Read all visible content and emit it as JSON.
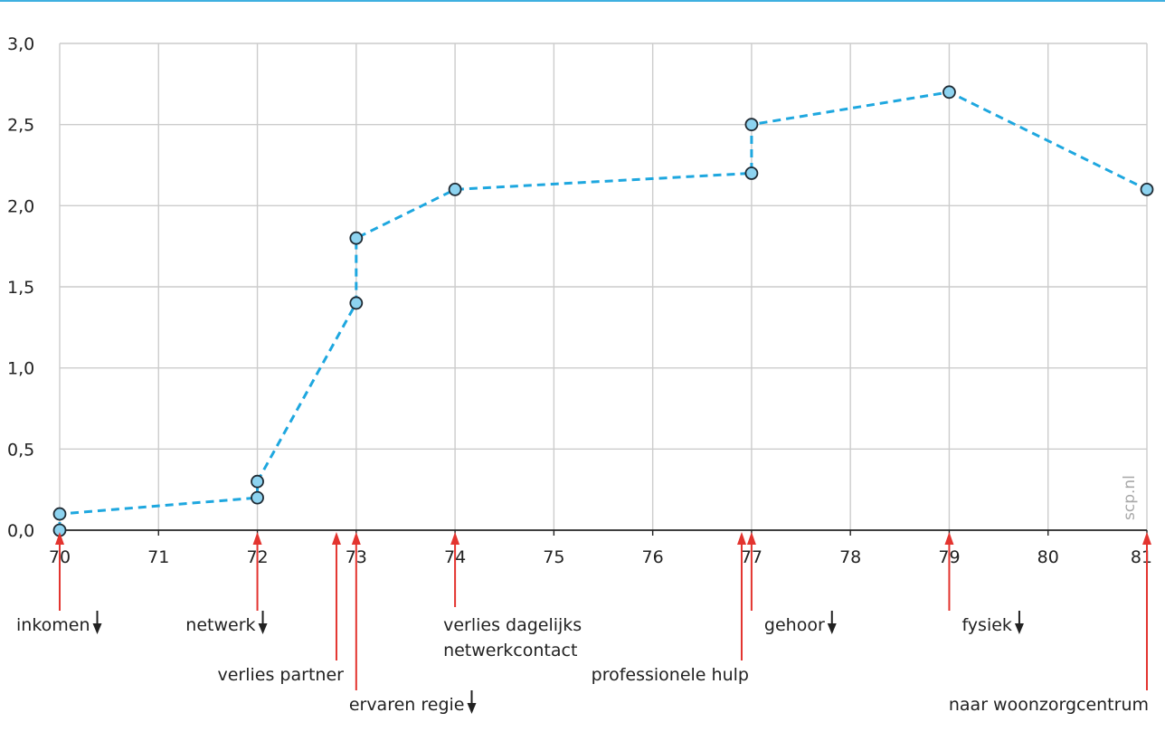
{
  "chart_data": {
    "type": "line",
    "title": "",
    "xlabel": "",
    "ylabel": "",
    "xlim": [
      70,
      81
    ],
    "ylim": [
      0,
      3
    ],
    "grid": true,
    "x_ticks": [
      70,
      71,
      72,
      73,
      74,
      75,
      76,
      77,
      78,
      79,
      80,
      81
    ],
    "x_tick_labels": [
      "70",
      "71",
      "72",
      "73",
      "74",
      "75",
      "76",
      "77",
      "78",
      "79",
      "80",
      "81"
    ],
    "y_ticks": [
      0,
      0.5,
      1,
      1.5,
      2,
      2.5,
      3
    ],
    "y_tick_labels": [
      "0,0",
      "0,5",
      "1,0",
      "1,5",
      "2,0",
      "2,5",
      "3,0"
    ],
    "series": [
      {
        "x": [
          70,
          70,
          72,
          72,
          73,
          73,
          74,
          77,
          77,
          79,
          81
        ],
        "y": [
          0.0,
          0.1,
          0.2,
          0.3,
          1.4,
          1.8,
          2.1,
          2.2,
          2.5,
          2.7,
          2.1
        ]
      }
    ],
    "annotations": [
      {
        "x": 70,
        "lines": [
          "inkomen"
        ],
        "row": 1,
        "down_arrow": true
      },
      {
        "x": 72,
        "lines": [
          "netwerk"
        ],
        "row": 1,
        "down_arrow": true
      },
      {
        "x": 72.8,
        "lines": [
          "verlies partner"
        ],
        "row": 2,
        "down_arrow": false
      },
      {
        "x": 73,
        "lines": [
          "ervaren regie"
        ],
        "row": 3,
        "down_arrow": true
      },
      {
        "x": 74,
        "lines": [
          "verlies dagelijks",
          "netwerkcontact"
        ],
        "row": 1,
        "down_arrow": false
      },
      {
        "x": 76.9,
        "lines": [
          "professionele hulp"
        ],
        "row": 2,
        "down_arrow": false
      },
      {
        "x": 77,
        "lines": [
          "gehoor"
        ],
        "row": 1,
        "down_arrow": true
      },
      {
        "x": 79,
        "lines": [
          "fysiek"
        ],
        "row": 1,
        "down_arrow": true
      },
      {
        "x": 81,
        "lines": [
          "naar woonzorgcentrum"
        ],
        "row": 3,
        "down_arrow": false
      }
    ],
    "watermark": "scp.nl"
  },
  "colors": {
    "line": "#1ea7df",
    "marker_fill": "#8dd3f0",
    "marker_stroke": "#1f2a33",
    "grid": "#cccccc",
    "axis": "#222222",
    "event_arrow": "#e3342f",
    "down_arrow": "#222222",
    "top_rule": "#3fb0e0"
  }
}
